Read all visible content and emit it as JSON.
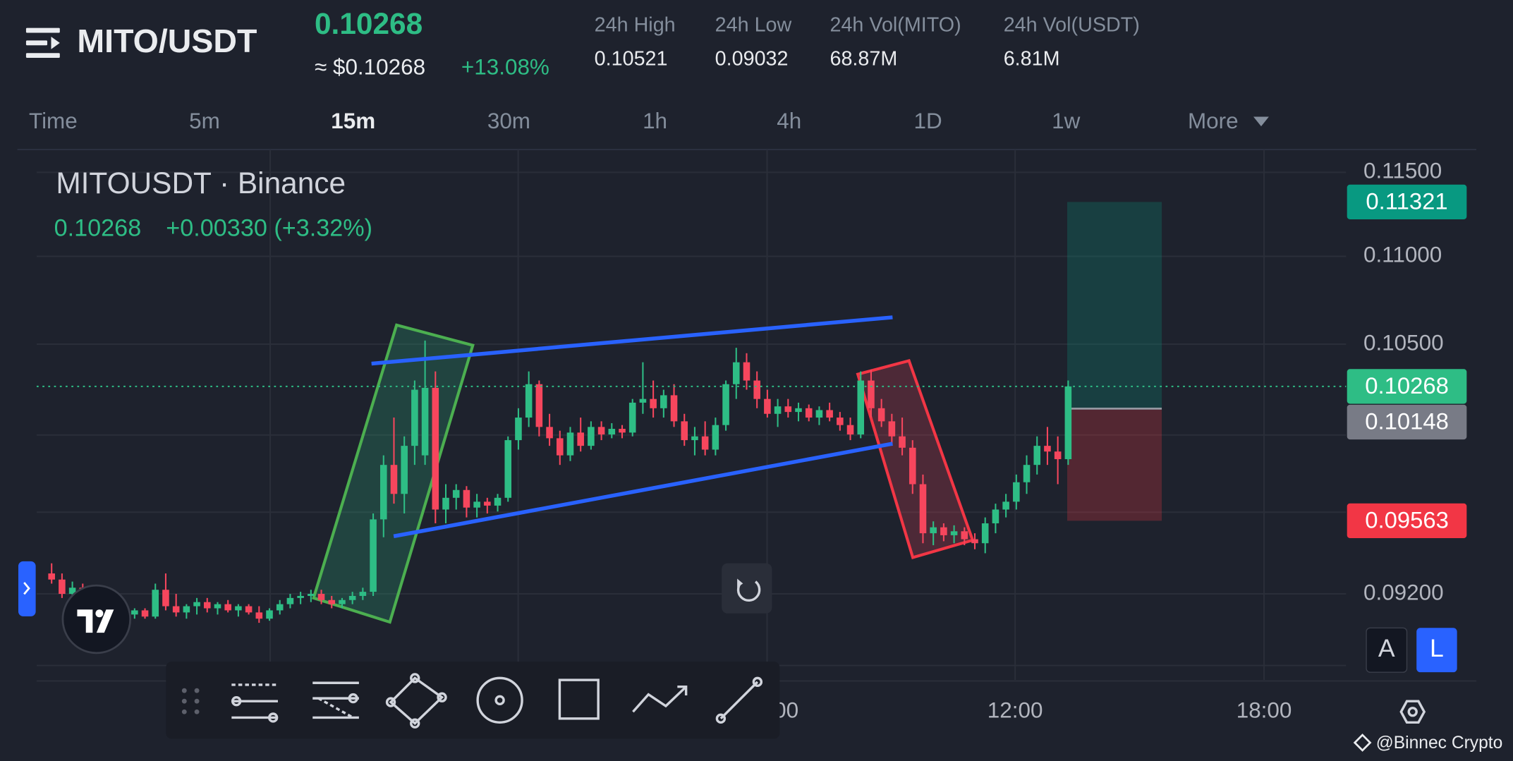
{
  "header": {
    "pair": "MITO/USDT",
    "price": "0.10268",
    "approx": "≈ $0.10268",
    "change": "+13.08%",
    "stats": [
      {
        "label": "24h High",
        "value": "0.10521"
      },
      {
        "label": "24h Low",
        "value": "0.09032"
      },
      {
        "label": "24h Vol(MITO)",
        "value": "68.87M"
      },
      {
        "label": "24h Vol(USDT)",
        "value": "6.81M"
      }
    ],
    "timeframes": [
      "Time",
      "5m",
      "15m",
      "30m",
      "1h",
      "4h",
      "1D",
      "1w",
      "More"
    ],
    "active_timeframe": "15m"
  },
  "chart_data": {
    "type": "candlestick",
    "title": "MITOUSDT · Binance",
    "legend_price": "0.10268",
    "legend_change": "+0.00330 (+3.32%)",
    "up_color": "#2ebd85",
    "down_color": "#f6465d",
    "log_scale": true,
    "grid": true,
    "ylim": [
      0.0879,
      0.1164
    ],
    "yticks": [
      {
        "value": 0.115,
        "label": "0.11500"
      },
      {
        "value": 0.11,
        "label": "0.11000"
      },
      {
        "value": 0.105,
        "label": "0.10500"
      },
      {
        "value": 0.092,
        "label": "0.09200"
      }
    ],
    "xtick_labels": [
      "00",
      "12:00",
      "18:00"
    ],
    "price_tags": {
      "target": 0.11321,
      "last": 0.10268,
      "entry": 0.10148,
      "stop": 0.09563
    },
    "candles": [
      [
        0.093,
        0.0935,
        0.0925,
        0.0927
      ],
      [
        0.0927,
        0.093,
        0.0918,
        0.092
      ],
      [
        0.092,
        0.0926,
        0.0915,
        0.0923
      ],
      [
        0.0923,
        0.0925,
        0.091,
        0.0912
      ],
      [
        0.0912,
        0.0916,
        0.0906,
        0.0909
      ],
      [
        0.0909,
        0.0914,
        0.0905,
        0.0911
      ],
      [
        0.0911,
        0.0915,
        0.0908,
        0.0913
      ],
      [
        0.0913,
        0.0914,
        0.0909,
        0.091
      ],
      [
        0.091,
        0.0913,
        0.0908,
        0.0912
      ],
      [
        0.0912,
        0.0913,
        0.0908,
        0.0909
      ],
      [
        0.0909,
        0.0925,
        0.0908,
        0.0922
      ],
      [
        0.0922,
        0.093,
        0.0912,
        0.0914
      ],
      [
        0.0914,
        0.092,
        0.0909,
        0.0911
      ],
      [
        0.0911,
        0.0915,
        0.0908,
        0.0914
      ],
      [
        0.0914,
        0.0918,
        0.091,
        0.0916
      ],
      [
        0.0916,
        0.0918,
        0.0911,
        0.0913
      ],
      [
        0.0913,
        0.0916,
        0.091,
        0.0915
      ],
      [
        0.0915,
        0.0917,
        0.0911,
        0.0912
      ],
      [
        0.0912,
        0.0915,
        0.0909,
        0.0914
      ],
      [
        0.0914,
        0.0915,
        0.091,
        0.0911
      ],
      [
        0.0911,
        0.0914,
        0.0906,
        0.0908
      ],
      [
        0.0908,
        0.0913,
        0.0907,
        0.0912
      ],
      [
        0.0912,
        0.0917,
        0.091,
        0.0915
      ],
      [
        0.0915,
        0.092,
        0.0913,
        0.0918
      ],
      [
        0.0918,
        0.0921,
        0.0915,
        0.0919
      ],
      [
        0.0919,
        0.0922,
        0.0916,
        0.092
      ],
      [
        0.092,
        0.0922,
        0.0915,
        0.0917
      ],
      [
        0.0917,
        0.0919,
        0.0913,
        0.0915
      ],
      [
        0.0915,
        0.0918,
        0.0913,
        0.0917
      ],
      [
        0.0917,
        0.0921,
        0.0915,
        0.0919
      ],
      [
        0.0919,
        0.0923,
        0.0917,
        0.0921
      ],
      [
        0.0921,
        0.096,
        0.0919,
        0.0957
      ],
      [
        0.0957,
        0.099,
        0.0948,
        0.0985
      ],
      [
        0.0985,
        0.101,
        0.0965,
        0.097
      ],
      [
        0.097,
        0.1,
        0.096,
        0.0995
      ],
      [
        0.0995,
        0.103,
        0.0985,
        0.1025
      ],
      [
        0.099,
        0.1052,
        0.0985,
        0.1026
      ],
      [
        0.1026,
        0.1035,
        0.0955,
        0.0962
      ],
      [
        0.0962,
        0.0975,
        0.0955,
        0.0968
      ],
      [
        0.0968,
        0.0975,
        0.0962,
        0.0972
      ],
      [
        0.0972,
        0.0974,
        0.0958,
        0.0963
      ],
      [
        0.0963,
        0.097,
        0.0958,
        0.0966
      ],
      [
        0.0966,
        0.0968,
        0.096,
        0.0964
      ],
      [
        0.0964,
        0.097,
        0.0961,
        0.0968
      ],
      [
        0.0968,
        0.1,
        0.0966,
        0.0998
      ],
      [
        0.0998,
        0.1015,
        0.0993,
        0.101
      ],
      [
        0.101,
        0.1035,
        0.1005,
        0.1028
      ],
      [
        0.1028,
        0.103,
        0.1,
        0.1005
      ],
      [
        0.1005,
        0.1012,
        0.0995,
        0.0999
      ],
      [
        0.0999,
        0.1003,
        0.0985,
        0.099
      ],
      [
        0.099,
        0.1005,
        0.0987,
        0.1002
      ],
      [
        0.1002,
        0.101,
        0.0992,
        0.0995
      ],
      [
        0.0995,
        0.1008,
        0.0993,
        0.1005
      ],
      [
        0.1005,
        0.1008,
        0.0998,
        0.1001
      ],
      [
        0.1001,
        0.1007,
        0.0999,
        0.1004
      ],
      [
        0.1004,
        0.1006,
        0.0999,
        0.1002
      ],
      [
        0.1002,
        0.102,
        0.1,
        0.1018
      ],
      [
        0.1018,
        0.104,
        0.1012,
        0.102
      ],
      [
        0.102,
        0.103,
        0.101,
        0.1015
      ],
      [
        0.1015,
        0.1025,
        0.101,
        0.1022
      ],
      [
        0.1022,
        0.1028,
        0.1005,
        0.1008
      ],
      [
        0.1008,
        0.1012,
        0.0995,
        0.0998
      ],
      [
        0.0998,
        0.1005,
        0.099,
        0.1
      ],
      [
        0.1,
        0.1008,
        0.099,
        0.0993
      ],
      [
        0.0993,
        0.101,
        0.099,
        0.1006
      ],
      [
        0.1006,
        0.103,
        0.1003,
        0.1028
      ],
      [
        0.1028,
        0.1048,
        0.102,
        0.104
      ],
      [
        0.104,
        0.1045,
        0.1025,
        0.103
      ],
      [
        0.103,
        0.1035,
        0.1015,
        0.102
      ],
      [
        0.102,
        0.1025,
        0.101,
        0.1012
      ],
      [
        0.1012,
        0.102,
        0.1005,
        0.1016
      ],
      [
        0.1016,
        0.102,
        0.101,
        0.1013
      ],
      [
        0.1013,
        0.1018,
        0.1008,
        0.1015
      ],
      [
        0.1015,
        0.1017,
        0.1008,
        0.101
      ],
      [
        0.101,
        0.1016,
        0.1006,
        0.1014
      ],
      [
        0.1014,
        0.1018,
        0.1008,
        0.101
      ],
      [
        0.101,
        0.1013,
        0.1003,
        0.1006
      ],
      [
        0.1006,
        0.101,
        0.0998,
        0.1001
      ],
      [
        0.1001,
        0.1035,
        0.0999,
        0.103
      ],
      [
        0.103,
        0.1036,
        0.101,
        0.1015
      ],
      [
        0.1015,
        0.102,
        0.1005,
        0.1008
      ],
      [
        0.1008,
        0.1012,
        0.0995,
        0.1
      ],
      [
        0.1,
        0.101,
        0.099,
        0.0994
      ],
      [
        0.0994,
        0.0998,
        0.097,
        0.0975
      ],
      [
        0.0975,
        0.098,
        0.0945,
        0.095
      ],
      [
        0.095,
        0.0956,
        0.0944,
        0.0953
      ],
      [
        0.0953,
        0.0955,
        0.0946,
        0.0949
      ],
      [
        0.0949,
        0.0954,
        0.0945,
        0.0951
      ],
      [
        0.0951,
        0.0953,
        0.0944,
        0.0947
      ],
      [
        0.0947,
        0.095,
        0.0942,
        0.0945
      ],
      [
        0.0945,
        0.0958,
        0.094,
        0.0955
      ],
      [
        0.0955,
        0.0965,
        0.095,
        0.0962
      ],
      [
        0.0962,
        0.097,
        0.0958,
        0.0966
      ],
      [
        0.0966,
        0.098,
        0.0962,
        0.0976
      ],
      [
        0.0976,
        0.099,
        0.097,
        0.0985
      ],
      [
        0.0985,
        0.1,
        0.098,
        0.0995
      ],
      [
        0.0995,
        0.1005,
        0.0985,
        0.0992
      ],
      [
        0.0992,
        0.1,
        0.0975,
        0.0988
      ],
      [
        0.0988,
        0.103,
        0.0985,
        0.10268
      ]
    ],
    "axis_buttons": [
      "A",
      "L"
    ],
    "watermark": "@Binnec Crypto"
  }
}
